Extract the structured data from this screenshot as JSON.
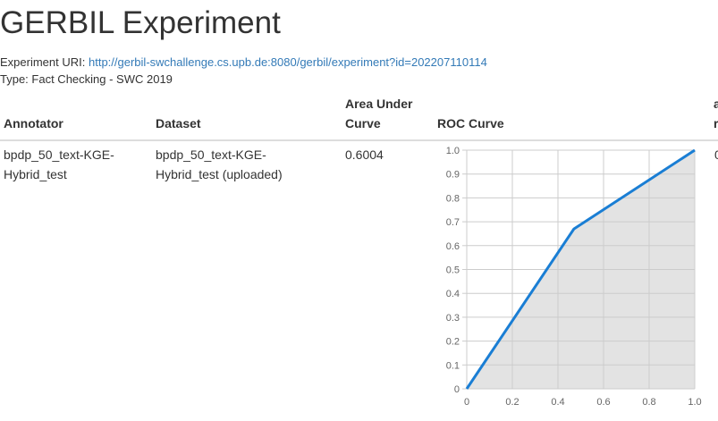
{
  "page": {
    "title": "GERBIL Experiment",
    "uri_label": "Experiment URI:",
    "uri_link": "http://gerbil-swchallenge.cs.upb.de:8080/gerbil/experiment?id=202207110114",
    "type_text": "Type: Fact Checking - SWC 2019"
  },
  "table": {
    "headers": {
      "annotator": "Annotator",
      "dataset": "Dataset",
      "auc_line1": "Area Under",
      "auc_line2": "Curve",
      "roc": "ROC Curve",
      "cut_line1": "a",
      "cut_line2": "r"
    },
    "rows": [
      {
        "annotator_line1": "bpdp_50_text-KGE-",
        "annotator_line2": "Hybrid_test",
        "dataset_line1": "bpdp_50_text-KGE-",
        "dataset_line2": "Hybrid_test (uploaded)",
        "auc": "0.6004",
        "cut_value": "0"
      }
    ]
  },
  "chart_data": {
    "type": "area",
    "x": [
      0,
      0.47,
      1.0
    ],
    "y": [
      0,
      0.67,
      1.0
    ],
    "xlim": [
      0,
      1
    ],
    "ylim": [
      0,
      1
    ],
    "xticks": [
      "0",
      "0.2",
      "0.4",
      "0.6",
      "0.8",
      "1.0"
    ],
    "yticks": [
      "0",
      "0.1",
      "0.2",
      "0.3",
      "0.4",
      "0.5",
      "0.6",
      "0.7",
      "0.8",
      "0.9",
      "1.0"
    ],
    "grid": true,
    "line_color": "#1a7ed4",
    "fill_color": "#e3e3e3",
    "title": "",
    "xlabel": "",
    "ylabel": ""
  }
}
